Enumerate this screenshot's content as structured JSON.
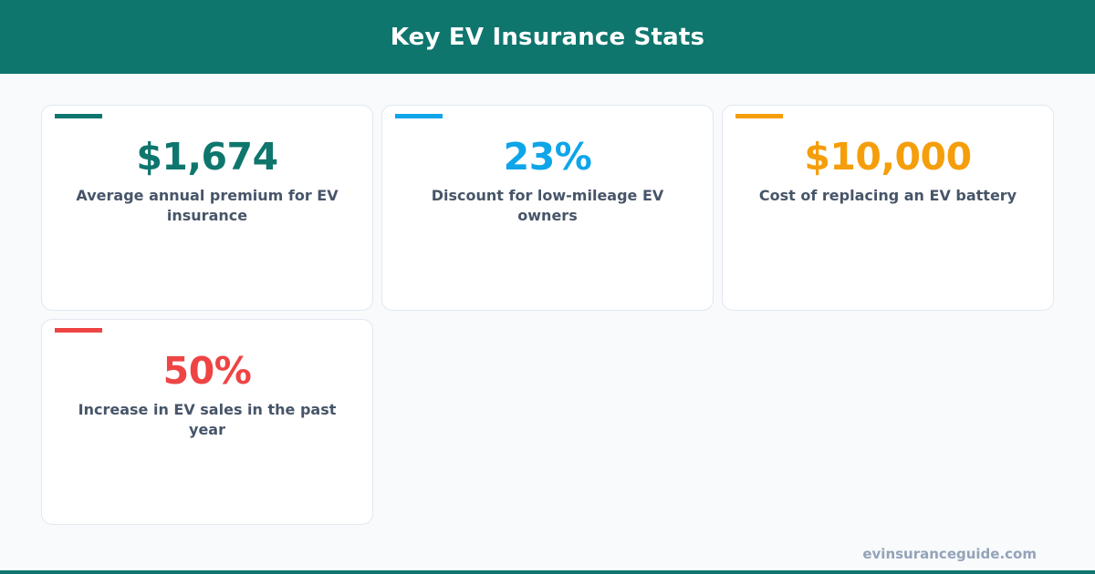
{
  "header": {
    "title": "Key EV Insurance Stats",
    "background": "#0f766e"
  },
  "stats": [
    {
      "value": "$1,674",
      "label": "Average annual premium for EV insurance",
      "color": "#0f766e"
    },
    {
      "value": "23%",
      "label": "Discount for low-mileage EV owners",
      "color": "#0ea5e9"
    },
    {
      "value": "$10,000",
      "label": "Cost of replacing an EV battery",
      "color": "#f59e0b"
    },
    {
      "value": "50%",
      "label": "Increase in EV sales in the past year",
      "color": "#ef4444"
    }
  ],
  "footer": {
    "domain": "evinsuranceguide.com"
  }
}
